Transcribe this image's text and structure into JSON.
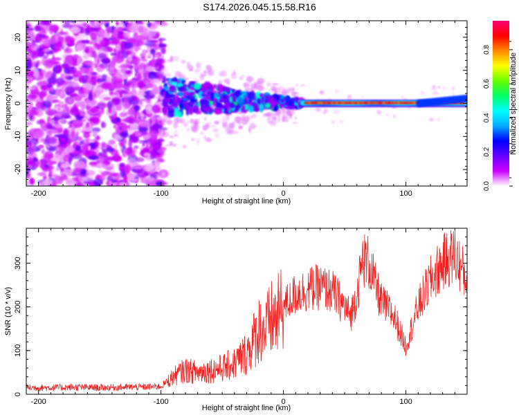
{
  "title": "S174.2026.045.15.58.R16",
  "chart_data": [
    {
      "type": "heatmap",
      "name": "spectrogram",
      "xlabel": "Height of straight line (km)",
      "ylabel": "Frequency (Hz)",
      "xlim": [
        -210,
        150
      ],
      "ylim": [
        -25,
        25
      ],
      "xticks": [
        -200,
        -100,
        0,
        100
      ],
      "yticks": [
        -20,
        -10,
        0,
        10,
        20
      ],
      "colorbar": {
        "label": "Normalized spectral amplitude",
        "range": [
          0,
          0.97
        ],
        "ticks": [
          "0.0",
          "0.2",
          "0.4",
          "0.6",
          "0.8"
        ],
        "tick_values": [
          0.0,
          0.2,
          0.4,
          0.6,
          0.8
        ],
        "colors": [
          "#ffffff",
          "#cc00ff",
          "#6600ff",
          "#0000ff",
          "#00aaff",
          "#00ffff",
          "#00ff66",
          "#66ff00",
          "#ffff00",
          "#ff8800",
          "#ff0000",
          "#ff0077"
        ]
      },
      "regions": [
        {
          "x": [
            -210,
            -98
          ],
          "freq": [
            -25,
            25
          ],
          "description_values": "noise"
        },
        {
          "x": [
            -98,
            15
          ],
          "freq_center": [
            3,
            0
          ],
          "amplitude_range": [
            0.1,
            0.5
          ]
        },
        {
          "x": [
            15,
            150
          ],
          "freq_center": [
            0,
            0
          ],
          "amplitude_range": [
            0.7,
            0.97
          ]
        }
      ]
    },
    {
      "type": "line",
      "name": "snr",
      "xlabel": "Height of straight line (km)",
      "ylabel": "SNR (10 * v/v)",
      "xlim": [
        -210,
        150
      ],
      "ylim": [
        0,
        380
      ],
      "xticks": [
        -200,
        -100,
        0,
        100
      ],
      "yticks": [
        0,
        100,
        200,
        300
      ],
      "color": "#ee2222",
      "series": [
        {
          "name": "SNR",
          "x": [
            -210,
            -190,
            -170,
            -150,
            -130,
            -110,
            -100,
            -90,
            -80,
            -70,
            -60,
            -50,
            -40,
            -30,
            -25,
            -20,
            -15,
            -10,
            -5,
            0,
            10,
            20,
            30,
            40,
            50,
            55,
            60,
            65,
            70,
            75,
            80,
            90,
            100,
            110,
            120,
            130,
            140,
            150
          ],
          "values": [
            15,
            15,
            16,
            15,
            16,
            17,
            18,
            40,
            55,
            50,
            55,
            60,
            70,
            95,
            120,
            150,
            145,
            170,
            175,
            200,
            230,
            240,
            245,
            235,
            200,
            180,
            230,
            310,
            300,
            250,
            210,
            180,
            110,
            200,
            260,
            300,
            320,
            260
          ]
        }
      ]
    }
  ]
}
